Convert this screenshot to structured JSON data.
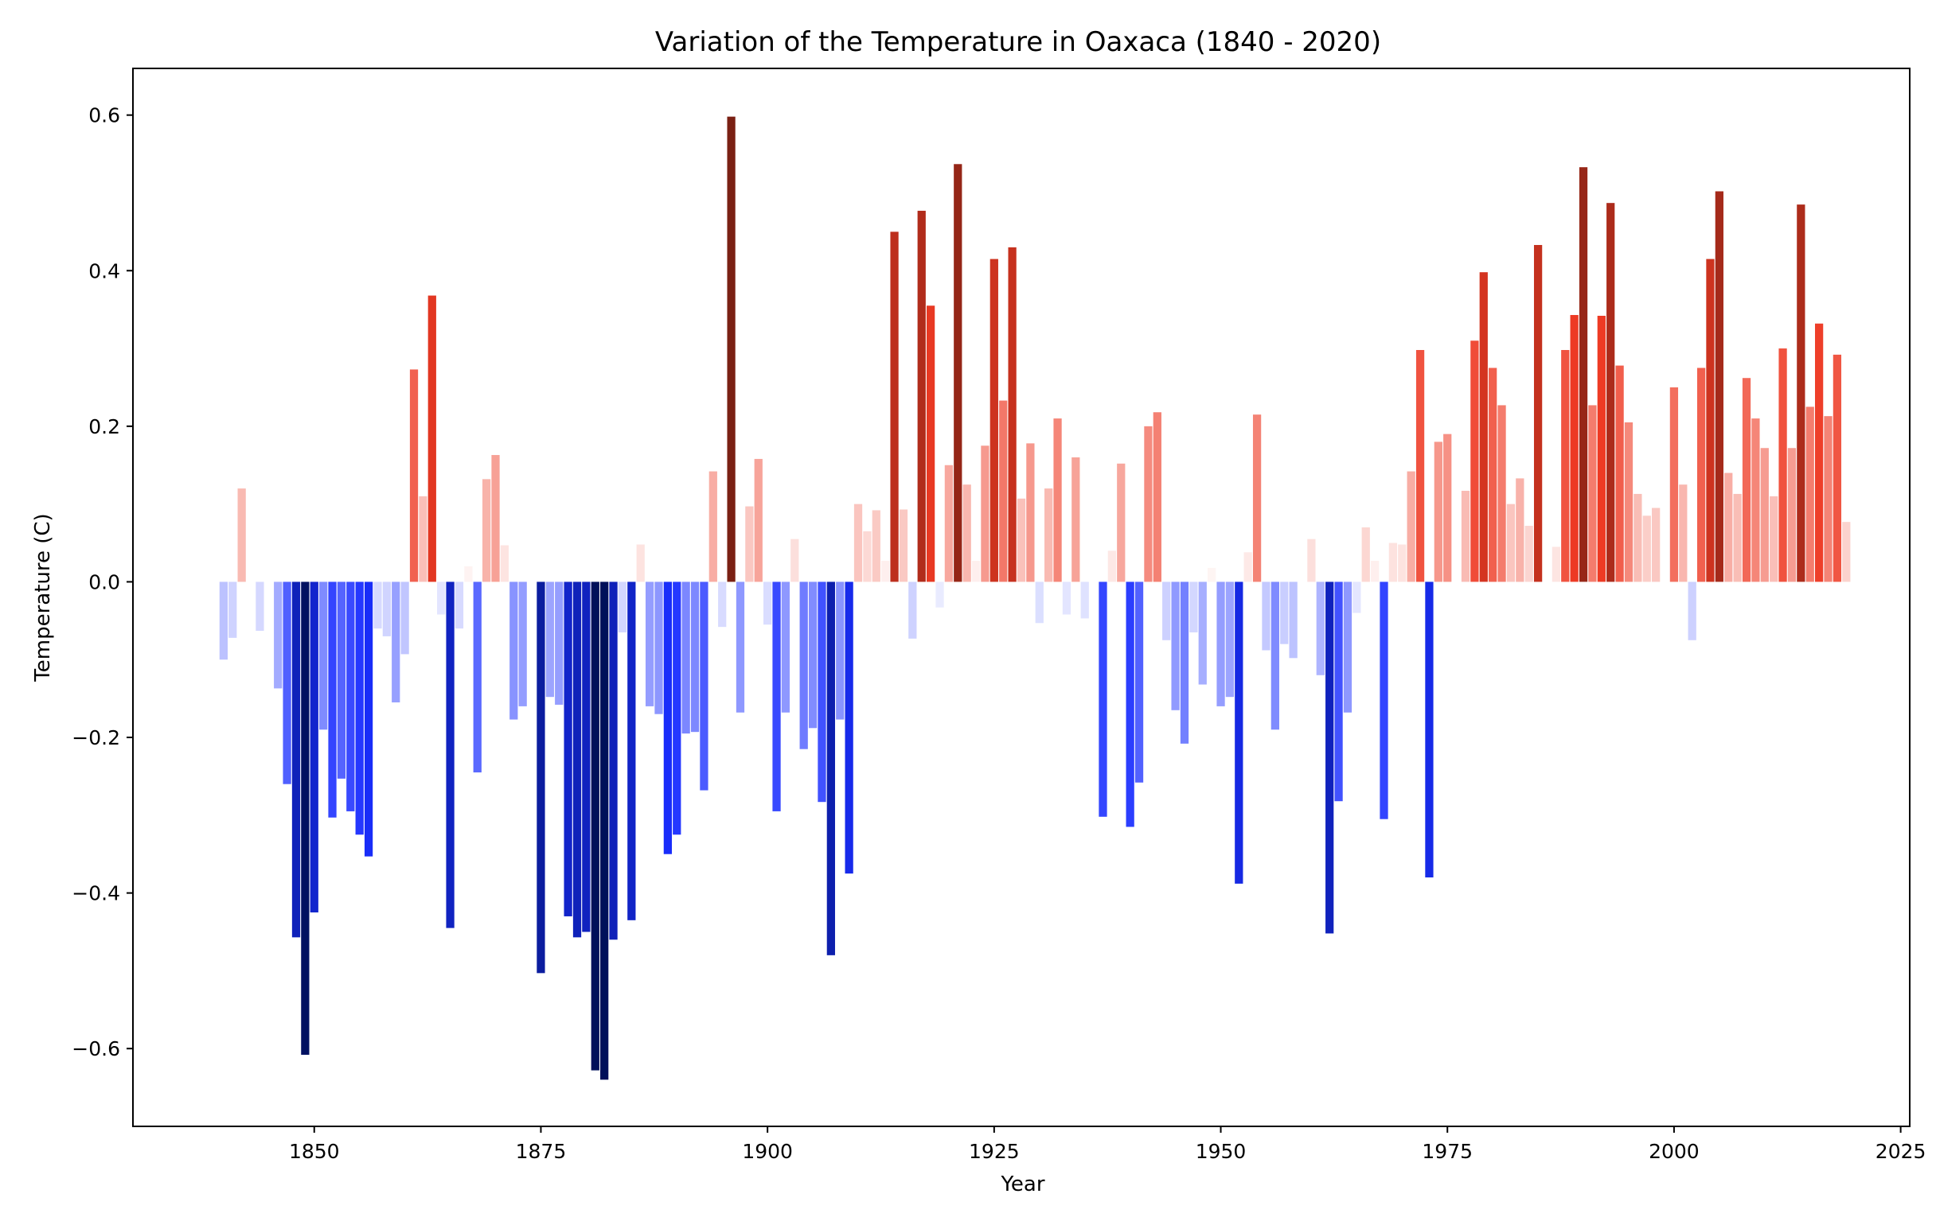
{
  "chart_data": {
    "type": "bar",
    "title": "Variation of the Temperature in Oaxaca (1840 - 2020)",
    "xlabel": "Year",
    "ylabel": "Temperature (C)",
    "xlim": [
      1830,
      2026
    ],
    "ylim": [
      -0.7,
      0.66
    ],
    "x_ticks": [
      1850,
      1875,
      1900,
      1925,
      1950,
      1975,
      2000,
      2025
    ],
    "y_ticks": [
      -0.6,
      -0.4,
      -0.2,
      0.0,
      0.2,
      0.4,
      0.6
    ],
    "y_tick_labels": [
      "−0.6",
      "−0.4",
      "−0.2",
      "0.0",
      "0.2",
      "0.4",
      "0.6"
    ],
    "grid": false,
    "legend": "none",
    "color_scale": {
      "negative_extreme": "#00105a",
      "negative_mid": "#1a2eff",
      "neutral": "#ffffff",
      "positive_mid": "#ee3a24",
      "positive_extreme": "#701e12"
    },
    "x": [
      1840,
      1841,
      1842,
      1843,
      1844,
      1845,
      1846,
      1847,
      1848,
      1849,
      1850,
      1851,
      1852,
      1853,
      1854,
      1855,
      1856,
      1857,
      1858,
      1859,
      1860,
      1861,
      1862,
      1863,
      1864,
      1865,
      1866,
      1867,
      1868,
      1869,
      1870,
      1871,
      1872,
      1873,
      1874,
      1875,
      1876,
      1877,
      1878,
      1879,
      1880,
      1881,
      1882,
      1883,
      1884,
      1885,
      1886,
      1887,
      1888,
      1889,
      1890,
      1891,
      1892,
      1893,
      1894,
      1895,
      1896,
      1897,
      1898,
      1899,
      1900,
      1901,
      1902,
      1903,
      1904,
      1905,
      1906,
      1907,
      1908,
      1909,
      1910,
      1911,
      1912,
      1913,
      1914,
      1915,
      1916,
      1917,
      1918,
      1919,
      1920,
      1921,
      1922,
      1923,
      1924,
      1925,
      1926,
      1927,
      1928,
      1929,
      1930,
      1931,
      1932,
      1933,
      1934,
      1935,
      1936,
      1937,
      1938,
      1939,
      1940,
      1941,
      1942,
      1943,
      1944,
      1945,
      1946,
      1947,
      1948,
      1949,
      1950,
      1951,
      1952,
      1953,
      1954,
      1955,
      1956,
      1957,
      1958,
      1959,
      1960,
      1961,
      1962,
      1963,
      1964,
      1965,
      1966,
      1967,
      1968,
      1969,
      1970,
      1971,
      1972,
      1973,
      1974,
      1975,
      1976,
      1977,
      1978,
      1979,
      1980,
      1981,
      1982,
      1983,
      1984,
      1985,
      1986,
      1987,
      1988,
      1989,
      1990,
      1991,
      1992,
      1993,
      1994,
      1995,
      1996,
      1997,
      1998,
      1999,
      2000,
      2001,
      2002,
      2003,
      2004,
      2005,
      2006,
      2007,
      2008,
      2009,
      2010,
      2011,
      2012,
      2013,
      2014,
      2015,
      2016,
      2017,
      2018,
      2019
    ],
    "values": [
      -0.1,
      -0.072,
      0.12,
      0.0,
      -0.063,
      0.0,
      -0.137,
      -0.26,
      -0.457,
      -0.608,
      -0.425,
      -0.19,
      -0.303,
      -0.253,
      -0.295,
      -0.325,
      -0.353,
      -0.06,
      -0.07,
      -0.155,
      -0.093,
      0.273,
      0.11,
      0.368,
      -0.042,
      -0.445,
      -0.06,
      0.02,
      -0.245,
      0.132,
      0.163,
      0.047,
      -0.177,
      -0.16,
      0.0,
      -0.503,
      -0.148,
      -0.158,
      -0.43,
      -0.457,
      -0.45,
      -0.628,
      -0.64,
      -0.46,
      -0.065,
      -0.435,
      0.048,
      -0.16,
      -0.17,
      -0.35,
      -0.325,
      -0.195,
      -0.193,
      -0.268,
      0.142,
      -0.058,
      0.598,
      -0.168,
      0.097,
      0.158,
      -0.055,
      -0.295,
      -0.168,
      0.055,
      -0.215,
      -0.188,
      -0.283,
      -0.48,
      -0.177,
      -0.375,
      0.1,
      0.065,
      0.092,
      0.027,
      0.45,
      0.093,
      -0.073,
      0.477,
      0.355,
      -0.033,
      0.15,
      0.537,
      0.125,
      0.027,
      0.175,
      0.415,
      0.233,
      0.43,
      0.107,
      0.178,
      -0.053,
      0.12,
      0.21,
      -0.042,
      0.16,
      -0.047,
      0.0,
      -0.302,
      0.04,
      0.152,
      -0.315,
      -0.258,
      0.2,
      0.218,
      -0.075,
      -0.165,
      -0.208,
      -0.065,
      -0.132,
      0.018,
      -0.16,
      -0.148,
      -0.388,
      0.038,
      0.215,
      -0.088,
      -0.19,
      -0.08,
      -0.098,
      0.0,
      0.055,
      -0.12,
      -0.452,
      -0.282,
      -0.168,
      -0.04,
      0.07,
      0.027,
      -0.305,
      0.05,
      0.048,
      0.142,
      0.298,
      -0.38,
      0.18,
      0.19,
      0.0,
      0.117,
      0.31,
      0.398,
      0.275,
      0.227,
      0.1,
      0.133,
      0.072,
      0.433,
      0.0,
      0.045,
      0.298,
      0.343,
      0.533,
      0.227,
      0.342,
      0.487,
      0.278,
      0.205,
      0.113,
      0.085,
      0.095,
      0.0,
      0.25,
      0.125,
      -0.075,
      0.275,
      0.415,
      0.502,
      0.14,
      0.113,
      0.262,
      0.21,
      0.172,
      0.11,
      0.3,
      0.172,
      0.485,
      0.225,
      0.332,
      0.213,
      0.292,
      0.077
    ]
  }
}
